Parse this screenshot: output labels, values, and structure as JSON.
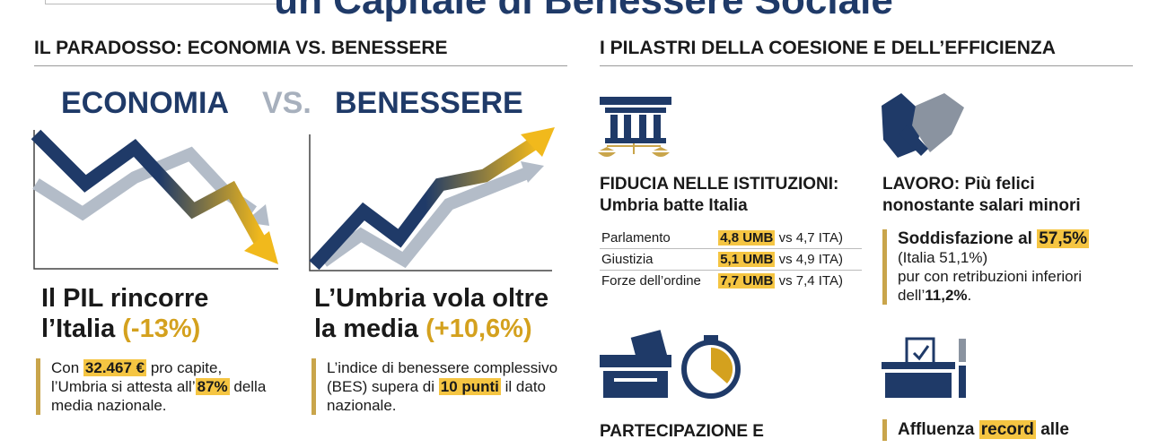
{
  "header": {
    "title": "un Capitale di Benessere Sociale"
  },
  "left": {
    "heading": "IL PARADOSSO: ECONOMIA VS. BENESSERE",
    "banner": {
      "left": "ECONOMIA",
      "vs": "VS.",
      "right": "BENESSERE"
    },
    "cards": [
      {
        "title_lines": [
          "Il PIL rincorre",
          "l’Italia"
        ],
        "figure": "(-13%)",
        "text": [
          "Con ",
          "32.467 €",
          " pro capite, l’Umbria si attesta all’",
          "87%",
          " della media nazionale."
        ]
      },
      {
        "title_lines": [
          "L’Umbria vola oltre",
          "la media"
        ],
        "figure": "(+10,6%)",
        "text": [
          "L’indice di benessere complessivo (BES) supera di ",
          "10 punti",
          " il dato nazionale."
        ]
      }
    ]
  },
  "right": {
    "heading": "I PILASTRI DELLA COESIONE E DELL’EFFICIENZA",
    "trust": {
      "title_lines": [
        "FIDUCIA NELLE ISTITUZIONI:",
        "Umbria batte Italia"
      ],
      "rows": [
        [
          "Parlamento",
          "4,8 UMB",
          "vs 4,7 ITA)"
        ],
        [
          "Giustizia",
          "5,1 UMB",
          "vs 4,9 ITA)"
        ],
        [
          "Forze dell’ordine",
          "7,7 UMB",
          "vs 7,4 ITA)"
        ]
      ]
    },
    "work": {
      "title_lines": [
        "LAVORO: Più felici",
        "nonostante salari minori"
      ],
      "text": [
        "Soddisfazione al ",
        "57,5%",
        "(Italia 51,1%)",
        "pur con retribuzioni inferiori dell’",
        "11,2%",
        "."
      ]
    },
    "participation": {
      "title": "PARTECIPAZIONE E"
    },
    "turnout": {
      "title": [
        "Affluenza ",
        "record",
        " alle"
      ]
    }
  }
}
